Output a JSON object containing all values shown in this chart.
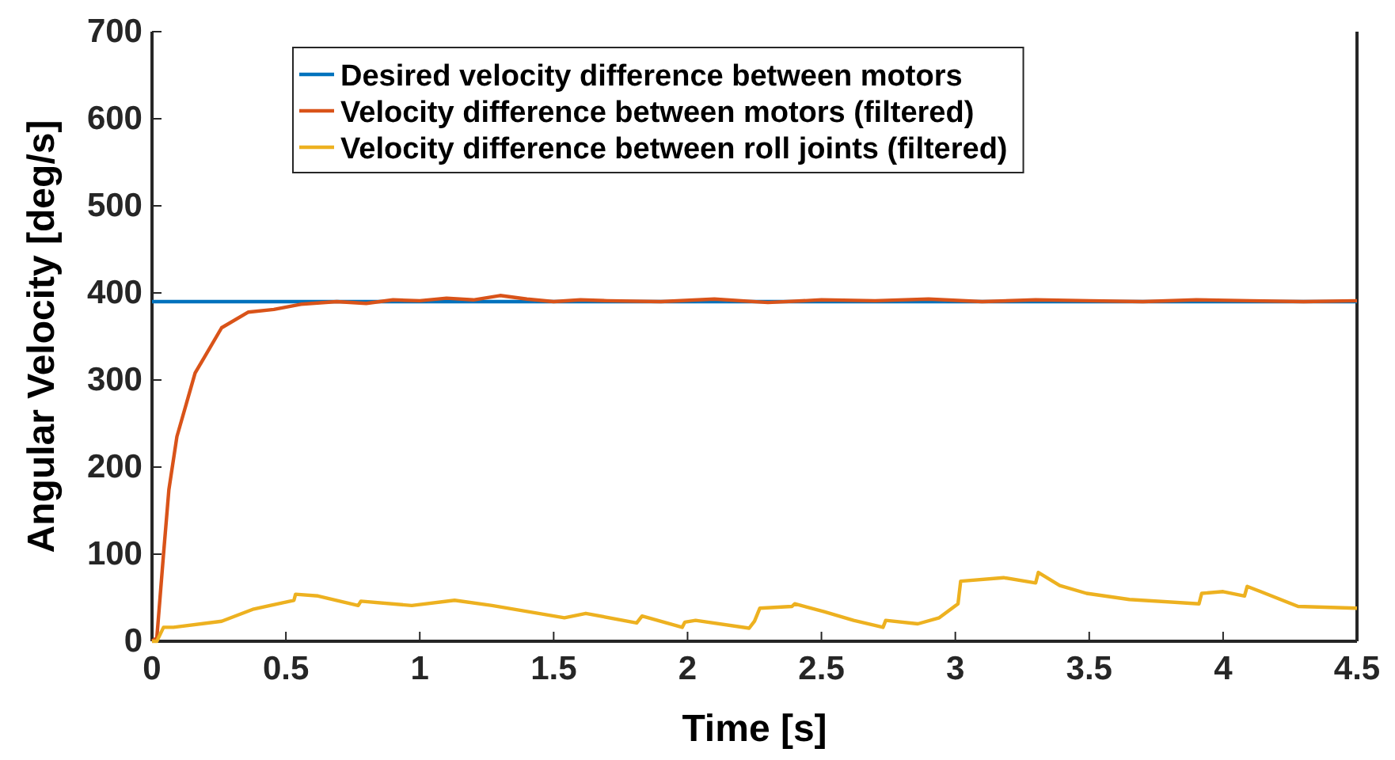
{
  "chart_data": {
    "type": "line",
    "xlabel": "Time [s]",
    "ylabel": "Angular Velocity [deg/s]",
    "xlim": [
      0,
      4.5
    ],
    "ylim": [
      0,
      700
    ],
    "xticks": [
      0,
      0.5,
      1,
      1.5,
      2,
      2.5,
      3,
      3.5,
      4,
      4.5
    ],
    "yticks": [
      0,
      100,
      200,
      300,
      400,
      500,
      600,
      700
    ],
    "grid": false,
    "legend": "top",
    "line_style": "solid",
    "marker": "none",
    "series": [
      {
        "name": "Desired velocity difference between motors",
        "color": "#0072bd",
        "x": [
          0,
          4.5
        ],
        "values": [
          390,
          390
        ]
      },
      {
        "name": "Velocity difference between motors (filtered)",
        "color": "#d95319",
        "x": [
          0,
          0.018,
          0.043,
          0.063,
          0.093,
          0.161,
          0.26,
          0.36,
          0.455,
          0.556,
          0.69,
          0.8,
          0.9,
          1.0,
          1.1,
          1.2,
          1.3,
          1.4,
          1.5,
          1.6,
          1.7,
          1.9,
          2.1,
          2.3,
          2.5,
          2.7,
          2.9,
          3.1,
          3.3,
          3.5,
          3.7,
          3.9,
          4.1,
          4.3,
          4.5
        ],
        "values": [
          0,
          4,
          100,
          174,
          235,
          308,
          360,
          378,
          381,
          387,
          390,
          388,
          392,
          391,
          394,
          392,
          397,
          393,
          390,
          392,
          391,
          390,
          393,
          389,
          392,
          391,
          393,
          390,
          392,
          391,
          390,
          392,
          391,
          390,
          391
        ]
      },
      {
        "name": "Velocity difference between roll joints (filtered)",
        "color": "#edb120",
        "x": [
          0,
          0.018,
          0.043,
          0.08,
          0.26,
          0.38,
          0.53,
          0.536,
          0.62,
          0.77,
          0.78,
          0.97,
          1.13,
          1.27,
          1.54,
          1.62,
          1.81,
          1.83,
          1.98,
          1.99,
          2.03,
          2.23,
          2.25,
          2.27,
          2.39,
          2.4,
          2.51,
          2.62,
          2.73,
          2.74,
          2.86,
          2.94,
          3.01,
          3.02,
          3.18,
          3.3,
          3.31,
          3.39,
          3.49,
          3.65,
          3.91,
          3.92,
          4.0,
          4.08,
          4.09,
          4.14,
          4.28,
          4.5
        ],
        "values": [
          0,
          0,
          16,
          16,
          23,
          37,
          47,
          54,
          52,
          41,
          46,
          41,
          47,
          41,
          27,
          32,
          21,
          29,
          16,
          22,
          24,
          15,
          23,
          38,
          40,
          43,
          34,
          24,
          16,
          24,
          20,
          27,
          43,
          69,
          73,
          67,
          79,
          64,
          55,
          48,
          43,
          55,
          57,
          52,
          63,
          57,
          40,
          38
        ]
      }
    ]
  }
}
